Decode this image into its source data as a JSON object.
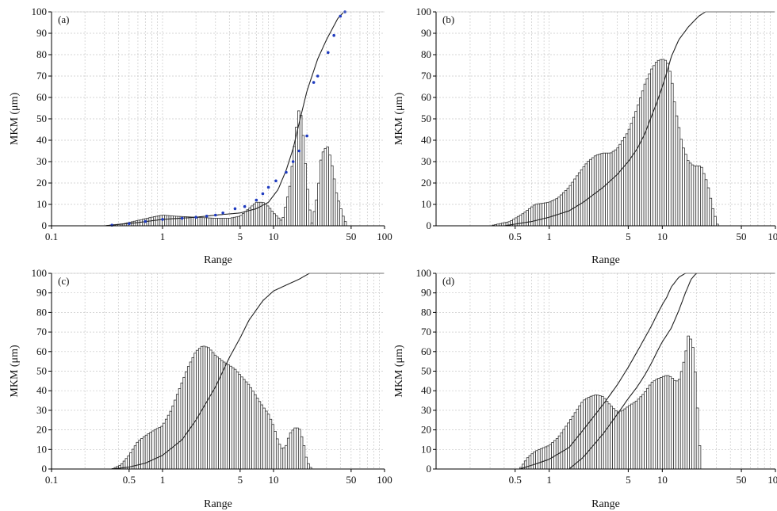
{
  "colors": {
    "bars": "#333333",
    "cumulative_line": "#222222",
    "markers": "#1f3bbf",
    "grid": "#c8c8c8"
  },
  "chart_data": [
    {
      "panel": "(a)",
      "type": "bar",
      "xscale": "log",
      "xlabel": "Range",
      "ylabel": "MKM (μm)",
      "xlim": [
        0.1,
        100
      ],
      "ylim": [
        0,
        100
      ],
      "xticks": [
        0.1,
        1,
        5,
        10,
        50,
        100
      ],
      "xtick_labels": [
        "0.1",
        "1",
        "5",
        "10",
        "50",
        "100"
      ],
      "yticks": [
        0,
        10,
        20,
        30,
        40,
        50,
        60,
        70,
        80,
        90,
        100
      ],
      "grid": true,
      "distribution": [
        [
          0.3,
          0
        ],
        [
          0.45,
          1
        ],
        [
          0.6,
          2.5
        ],
        [
          0.8,
          4
        ],
        [
          1.0,
          5
        ],
        [
          1.3,
          4.5
        ],
        [
          2,
          4
        ],
        [
          3,
          3.5
        ],
        [
          4,
          3.5
        ],
        [
          5,
          4.5
        ],
        [
          6,
          8
        ],
        [
          7,
          11
        ],
        [
          8,
          11
        ],
        [
          9,
          9
        ],
        [
          10,
          6
        ],
        [
          12,
          2
        ],
        [
          14,
          18
        ],
        [
          16,
          45
        ],
        [
          17,
          55
        ],
        [
          18,
          50
        ],
        [
          20,
          20
        ],
        [
          22,
          0
        ],
        [
          25,
          15
        ],
        [
          27,
          33
        ],
        [
          29,
          36
        ],
        [
          31,
          37
        ],
        [
          34,
          27
        ],
        [
          37,
          15
        ],
        [
          42,
          5
        ],
        [
          46,
          0
        ]
      ],
      "cumulative": [
        [
          0.3,
          0
        ],
        [
          0.6,
          1.5
        ],
        [
          1,
          3
        ],
        [
          2,
          4
        ],
        [
          3,
          5
        ],
        [
          5,
          6
        ],
        [
          7,
          8
        ],
        [
          9,
          11
        ],
        [
          11,
          17
        ],
        [
          13,
          26
        ],
        [
          15,
          36
        ],
        [
          17,
          48
        ],
        [
          20,
          63
        ],
        [
          25,
          78
        ],
        [
          30,
          87
        ],
        [
          38,
          97
        ],
        [
          43,
          100
        ]
      ],
      "markers": [
        [
          0.35,
          0.3
        ],
        [
          0.5,
          1
        ],
        [
          0.7,
          2
        ],
        [
          1,
          3
        ],
        [
          1.5,
          3.5
        ],
        [
          2,
          4
        ],
        [
          2.5,
          4.5
        ],
        [
          3,
          5
        ],
        [
          3.5,
          6
        ],
        [
          4.5,
          8
        ],
        [
          5.5,
          9
        ],
        [
          7,
          12
        ],
        [
          8,
          15
        ],
        [
          9,
          18
        ],
        [
          10.5,
          21
        ],
        [
          13,
          25
        ],
        [
          15,
          30
        ],
        [
          17,
          35
        ],
        [
          20,
          42
        ],
        [
          23,
          67
        ],
        [
          25,
          70
        ],
        [
          31,
          81
        ],
        [
          35,
          89
        ],
        [
          40,
          98
        ],
        [
          44,
          100
        ]
      ]
    },
    {
      "panel": "(b)",
      "type": "bar",
      "xscale": "log",
      "xlabel": "Range",
      "ylabel": "MKM (μm)",
      "xlim": [
        0.1,
        100
      ],
      "ylim": [
        0,
        100
      ],
      "xticks": [
        0.5,
        1,
        5,
        10,
        50,
        100
      ],
      "xtick_labels": [
        "0.5",
        "1",
        "5",
        "10",
        "50",
        "100"
      ],
      "yticks": [
        0,
        10,
        20,
        30,
        40,
        50,
        60,
        70,
        80,
        90,
        100
      ],
      "grid": true,
      "distribution": [
        [
          0.3,
          0
        ],
        [
          0.45,
          2
        ],
        [
          0.6,
          6
        ],
        [
          0.75,
          10
        ],
        [
          1,
          11
        ],
        [
          1.2,
          13
        ],
        [
          1.5,
          18
        ],
        [
          1.8,
          24
        ],
        [
          2.2,
          30
        ],
        [
          2.6,
          33
        ],
        [
          3,
          34
        ],
        [
          3.5,
          34
        ],
        [
          4,
          36
        ],
        [
          5,
          44
        ],
        [
          6,
          55
        ],
        [
          7,
          66
        ],
        [
          8,
          73
        ],
        [
          9,
          77
        ],
        [
          10,
          78
        ],
        [
          11,
          77
        ],
        [
          12,
          70
        ],
        [
          13,
          55
        ],
        [
          15,
          38
        ],
        [
          17,
          30
        ],
        [
          19,
          28
        ],
        [
          22,
          28
        ],
        [
          25,
          20
        ],
        [
          28,
          8
        ],
        [
          31,
          0
        ]
      ],
      "cumulative": [
        [
          0.4,
          0
        ],
        [
          0.7,
          2
        ],
        [
          1,
          4
        ],
        [
          1.5,
          7
        ],
        [
          2,
          11
        ],
        [
          3,
          18
        ],
        [
          4,
          24
        ],
        [
          5,
          30
        ],
        [
          6,
          36
        ],
        [
          7,
          43
        ],
        [
          8,
          51
        ],
        [
          9,
          58
        ],
        [
          10,
          65
        ],
        [
          11,
          72
        ],
        [
          12,
          79
        ],
        [
          14,
          87
        ],
        [
          17,
          93
        ],
        [
          21,
          98
        ],
        [
          24,
          100
        ],
        [
          100,
          100
        ]
      ]
    },
    {
      "panel": "(c)",
      "type": "bar",
      "xscale": "log",
      "xlabel": "Range",
      "ylabel": "MKM (μm)",
      "xlim": [
        0.1,
        100
      ],
      "ylim": [
        0,
        100
      ],
      "xticks": [
        0.1,
        0.5,
        1,
        5,
        10,
        50,
        100
      ],
      "xtick_labels": [
        "0.1",
        "0.5",
        "1",
        "5",
        "10",
        "50",
        "100"
      ],
      "yticks": [
        0,
        10,
        20,
        30,
        40,
        50,
        60,
        70,
        80,
        90,
        100
      ],
      "grid": true,
      "distribution": [
        [
          0.35,
          0
        ],
        [
          0.42,
          2
        ],
        [
          0.5,
          7
        ],
        [
          0.6,
          14
        ],
        [
          0.7,
          17
        ],
        [
          0.85,
          20
        ],
        [
          1,
          22
        ],
        [
          1.2,
          30
        ],
        [
          1.4,
          40
        ],
        [
          1.7,
          52
        ],
        [
          2,
          60
        ],
        [
          2.3,
          63
        ],
        [
          2.6,
          62
        ],
        [
          3,
          58
        ],
        [
          3.5,
          55
        ],
        [
          4,
          53
        ],
        [
          4.5,
          51
        ],
        [
          5,
          48
        ],
        [
          6,
          43
        ],
        [
          7,
          37
        ],
        [
          8,
          32
        ],
        [
          9,
          28
        ],
        [
          10,
          22
        ],
        [
          11,
          14
        ],
        [
          12,
          10
        ],
        [
          13,
          12
        ],
        [
          14,
          18
        ],
        [
          15.5,
          21
        ],
        [
          17,
          21
        ],
        [
          18.5,
          14
        ],
        [
          20,
          4
        ],
        [
          22,
          0
        ]
      ],
      "cumulative": [
        [
          0.35,
          0
        ],
        [
          0.5,
          1
        ],
        [
          0.7,
          3
        ],
        [
          1,
          7
        ],
        [
          1.5,
          15
        ],
        [
          2,
          25
        ],
        [
          3,
          42
        ],
        [
          4,
          57
        ],
        [
          5,
          67
        ],
        [
          6,
          76
        ],
        [
          8,
          86
        ],
        [
          10,
          91
        ],
        [
          13,
          94
        ],
        [
          17,
          97
        ],
        [
          21,
          100
        ],
        [
          100,
          100
        ]
      ]
    },
    {
      "panel": "(d)",
      "type": "bar",
      "xscale": "log",
      "xlabel": "Range",
      "ylabel": "MKM (μm)",
      "xlim": [
        0.1,
        100
      ],
      "ylim": [
        0,
        100
      ],
      "xticks": [
        0.5,
        1,
        5,
        10,
        50,
        100
      ],
      "xtick_labels": [
        "0.5",
        "1",
        "5",
        "10",
        "50",
        "100"
      ],
      "yticks": [
        0,
        10,
        20,
        30,
        40,
        50,
        60,
        70,
        80,
        90,
        100
      ],
      "grid": true,
      "distribution": [
        [
          0.55,
          0
        ],
        [
          0.65,
          6
        ],
        [
          0.75,
          9
        ],
        [
          0.9,
          11
        ],
        [
          1,
          12
        ],
        [
          1.2,
          16
        ],
        [
          1.5,
          24
        ],
        [
          1.8,
          31
        ],
        [
          2,
          35
        ],
        [
          2.3,
          37
        ],
        [
          2.6,
          38
        ],
        [
          3,
          37
        ],
        [
          3.3,
          34
        ],
        [
          3.7,
          31
        ],
        [
          4,
          29
        ],
        [
          4.5,
          30
        ],
        [
          5,
          32
        ],
        [
          6,
          35
        ],
        [
          7,
          39
        ],
        [
          8,
          44
        ],
        [
          9,
          46
        ],
        [
          10,
          47
        ],
        [
          11,
          48
        ],
        [
          12,
          47
        ],
        [
          13,
          45
        ],
        [
          14,
          45
        ],
        [
          15,
          51
        ],
        [
          16,
          58
        ],
        [
          17,
          68
        ],
        [
          18,
          66
        ],
        [
          19,
          60
        ],
        [
          20,
          40
        ],
        [
          21,
          20
        ],
        [
          22,
          0
        ]
      ],
      "cumulative": [
        [
          0.55,
          0
        ],
        [
          0.8,
          3
        ],
        [
          1,
          5
        ],
        [
          1.5,
          11
        ],
        [
          2,
          20
        ],
        [
          3,
          33
        ],
        [
          4,
          43
        ],
        [
          5,
          52
        ],
        [
          6,
          60
        ],
        [
          7,
          67
        ],
        [
          8,
          73
        ],
        [
          9,
          79
        ],
        [
          10,
          84
        ],
        [
          11,
          88
        ],
        [
          12,
          93
        ],
        [
          14,
          98
        ],
        [
          16,
          100
        ],
        [
          100,
          100
        ]
      ],
      "cumulative2": [
        [
          1.5,
          0
        ],
        [
          2,
          6
        ],
        [
          3,
          18
        ],
        [
          4,
          28
        ],
        [
          5,
          36
        ],
        [
          6,
          42
        ],
        [
          7,
          48
        ],
        [
          8,
          54
        ],
        [
          9,
          60
        ],
        [
          10,
          65
        ],
        [
          12,
          72
        ],
        [
          14,
          81
        ],
        [
          16,
          90
        ],
        [
          18,
          97
        ],
        [
          20,
          100
        ],
        [
          100,
          100
        ]
      ]
    }
  ]
}
